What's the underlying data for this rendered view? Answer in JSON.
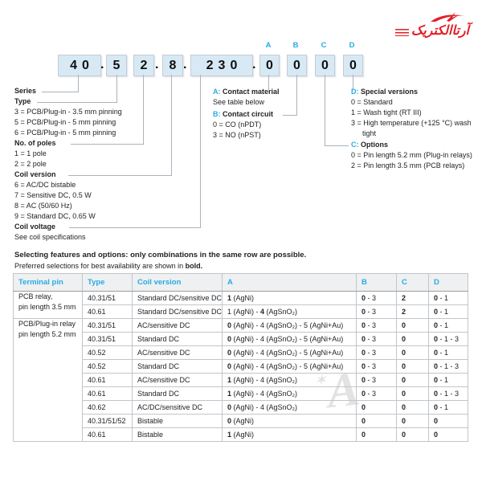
{
  "logo": {
    "text": "آرتاالکتریک",
    "color": "#e31e26"
  },
  "code": {
    "markers": [
      "A",
      "B",
      "C",
      "D"
    ],
    "series": "40",
    "type": "5",
    "poles": "2",
    "coil_version": "8",
    "coil_voltage": "230",
    "a": "0",
    "b": "0",
    "c": "0",
    "d": "0",
    "dot": "."
  },
  "left_sections": [
    {
      "title": "Series",
      "options": []
    },
    {
      "title": "Type",
      "options": [
        "3 = PCB/Plug-in - 3.5 mm pinning",
        "5 = PCB/Plug-in - 5 mm pinning",
        "6 = PCB/Plug-in - 5 mm pinning"
      ]
    },
    {
      "title": "No. of poles",
      "options": [
        "1 = 1 pole",
        "2 = 2 pole"
      ]
    },
    {
      "title": "Coil version",
      "options": [
        "6 = AC/DC bistable",
        "7 = Sensitive DC, 0.5 W",
        "8 = AC (50/60 Hz)",
        "9 = Standard DC, 0.65 W"
      ]
    },
    {
      "title": "Coil voltage",
      "options": [
        "See coil specifications"
      ]
    }
  ],
  "callouts": [
    {
      "letter": "A:",
      "title": "Contact material",
      "lines": [
        "See table below"
      ]
    },
    {
      "letter": "B:",
      "title": "Contact circuit",
      "lines": [
        "0 = CO (nPDT)",
        "3 = NO (nPST)"
      ]
    },
    {
      "letter": "D:",
      "title": "Special versions",
      "lines": [
        "0 = Standard",
        "1 = Wash tight (RT III)",
        "3 = High temperature (+125 °C) wash",
        "tight"
      ]
    },
    {
      "letter": "C:",
      "title": "Options",
      "lines": [
        "0 = Pin length 5.2 mm (Plug-in relays)",
        "2 = Pin length 3.5 mm (PCB relays)"
      ]
    }
  ],
  "notes": {
    "line1": "Selecting features and options: only combinations in the same row are possible.",
    "line2_pre": "Preferred selections for best availability are shown in ",
    "line2_bold": "bold."
  },
  "table": {
    "headers": [
      "Terminal pin",
      "Type",
      "Coil version",
      "A",
      "B",
      "C",
      "D"
    ],
    "groups": [
      {
        "terminal_lines": [
          "PCB relay,",
          "pin length 3.5 mm"
        ],
        "rows": [
          {
            "type": "40.31/51",
            "coil": "Standard DC/sensitive DC",
            "a": {
              "pre": "",
              "b": "1",
              "post": " (AgNi)"
            },
            "b": {
              "pre": "",
              "b": "0",
              "post": " - 3"
            },
            "c": {
              "pre": "",
              "b": "2",
              "post": ""
            },
            "d": {
              "pre": "",
              "b": "0",
              "post": " - 1"
            }
          },
          {
            "type": "40.61",
            "coil": "Standard DC/sensitive DC",
            "a": {
              "pre": "1 (AgNi) - ",
              "b": "4",
              "post": " (AgSnO₂)"
            },
            "b": {
              "pre": "",
              "b": "0",
              "post": " - 3"
            },
            "c": {
              "pre": "",
              "b": "2",
              "post": ""
            },
            "d": {
              "pre": "",
              "b": "0",
              "post": " - 1"
            }
          }
        ]
      },
      {
        "terminal_lines": [
          "PCB/Plug-in relay",
          "pin length 5.2 mm"
        ],
        "rows": [
          {
            "type": "40.31/51",
            "coil": "AC/sensitive DC",
            "a": {
              "pre": "",
              "b": "0",
              "post": " (AgNi) - 4 (AgSnO₂) - 5 (AgNi+Au)"
            },
            "b": {
              "pre": "",
              "b": "0",
              "post": " - 3"
            },
            "c": {
              "pre": "",
              "b": "0",
              "post": ""
            },
            "d": {
              "pre": "",
              "b": "0",
              "post": " - 1"
            }
          },
          {
            "type": "40.31/51",
            "coil": "Standard DC",
            "a": {
              "pre": "",
              "b": "0",
              "post": " (AgNi) - 4 (AgSnO₂) - 5 (AgNi+Au)"
            },
            "b": {
              "pre": "",
              "b": "0",
              "post": " - 3"
            },
            "c": {
              "pre": "",
              "b": "0",
              "post": ""
            },
            "d": {
              "pre": "",
              "b": "0",
              "post": " - 1 - 3"
            }
          },
          {
            "type": "40.52",
            "coil": "AC/sensitive DC",
            "a": {
              "pre": "",
              "b": "0",
              "post": " (AgNi) - 4 (AgSnO₂) - 5 (AgNi+Au)"
            },
            "b": {
              "pre": "",
              "b": "0",
              "post": " - 3"
            },
            "c": {
              "pre": "",
              "b": "0",
              "post": ""
            },
            "d": {
              "pre": "",
              "b": "0",
              "post": " - 1"
            }
          },
          {
            "type": "40.52",
            "coil": "Standard DC",
            "a": {
              "pre": "",
              "b": "0",
              "post": " (AgNi) - 4 (AgSnO₂) - 5 (AgNi+Au)"
            },
            "b": {
              "pre": "",
              "b": "0",
              "post": " - 3"
            },
            "c": {
              "pre": "",
              "b": "0",
              "post": ""
            },
            "d": {
              "pre": "",
              "b": "0",
              "post": " - 1 - 3"
            }
          },
          {
            "type": "40.61",
            "coil": "AC/sensitive DC",
            "a": {
              "pre": "",
              "b": "1",
              "post": " (AgNi) - 4 (AgSnO₂)"
            },
            "b": {
              "pre": "",
              "b": "0",
              "post": " - 3"
            },
            "c": {
              "pre": "",
              "b": "0",
              "post": ""
            },
            "d": {
              "pre": "",
              "b": "0",
              "post": " - 1"
            }
          },
          {
            "type": "40.61",
            "coil": "Standard DC",
            "a": {
              "pre": "",
              "b": "1",
              "post": " (AgNi) - 4 (AgSnO₂)"
            },
            "b": {
              "pre": "",
              "b": "0",
              "post": " - 3"
            },
            "c": {
              "pre": "",
              "b": "0",
              "post": ""
            },
            "d": {
              "pre": "",
              "b": "0",
              "post": " - 1 - 3"
            }
          },
          {
            "type": "40.62",
            "coil": "AC/DC/sensitive DC",
            "a": {
              "pre": "",
              "b": "0",
              "post": " (AgNi) - 4 (AgSnO₂)"
            },
            "b": {
              "pre": "",
              "b": "0",
              "post": ""
            },
            "c": {
              "pre": "",
              "b": "0",
              "post": ""
            },
            "d": {
              "pre": "",
              "b": "0",
              "post": " - 1"
            }
          },
          {
            "type": "40.31/51/52",
            "coil": "Bistable",
            "a": {
              "pre": "",
              "b": "0",
              "post": " (AgNi)"
            },
            "b": {
              "pre": "",
              "b": "0",
              "post": ""
            },
            "c": {
              "pre": "",
              "b": "0",
              "post": ""
            },
            "d": {
              "pre": "",
              "b": "0",
              "post": ""
            }
          },
          {
            "type": "40.61",
            "coil": "Bistable",
            "a": {
              "pre": "",
              "b": "1",
              "post": " (AgNi)"
            },
            "b": {
              "pre": "",
              "b": "0",
              "post": ""
            },
            "c": {
              "pre": "",
              "b": "0",
              "post": ""
            },
            "d": {
              "pre": "",
              "b": "0",
              "post": ""
            }
          }
        ]
      }
    ]
  },
  "watermark": {
    "text": "A",
    "star": "✶"
  },
  "colors": {
    "accent": "#29abe2",
    "logo_red": "#e31e26",
    "box_fill": "#d7e9f5"
  }
}
